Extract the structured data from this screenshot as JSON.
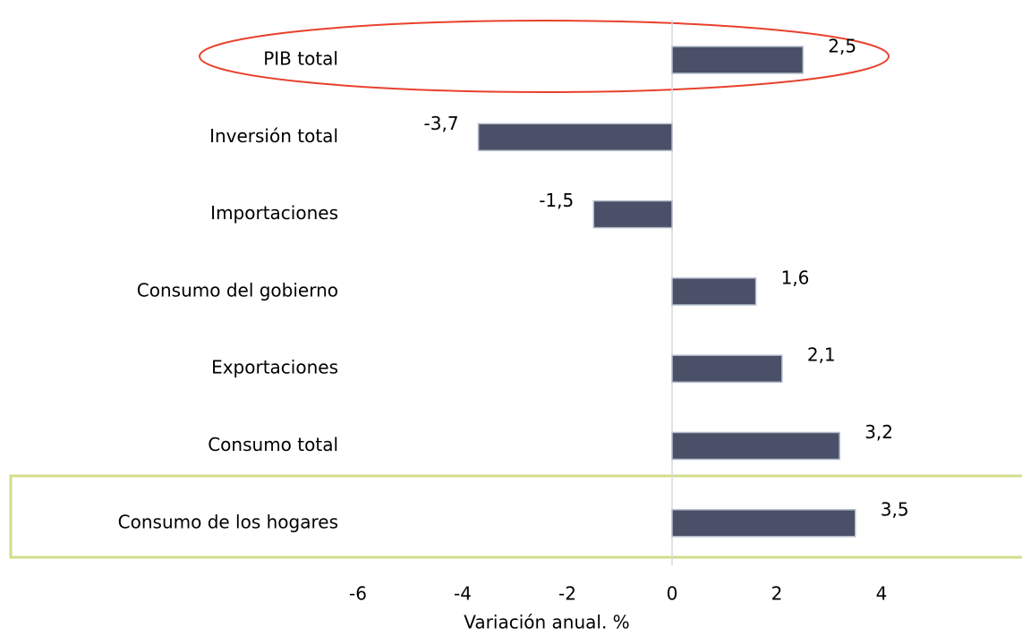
{
  "chart_data": {
    "type": "bar",
    "orientation": "horizontal",
    "categories": [
      "PIB total",
      "Inversión total",
      "Importaciones",
      "Consumo del gobierno",
      "Exportaciones",
      "Consumo total",
      "Consumo de los hogares"
    ],
    "values": [
      2.5,
      -3.7,
      -1.5,
      1.6,
      2.1,
      3.2,
      3.5
    ],
    "value_labels": [
      "2,5",
      "-3,7",
      "-1,5",
      "1,6",
      "2,1",
      "3,2",
      "3,5"
    ],
    "color": "#4a5068",
    "xlim": [
      -6,
      4
    ],
    "xticks": [
      -6,
      -4,
      -2,
      0,
      2,
      4
    ],
    "xlabel": "Variación anual. %"
  }
}
